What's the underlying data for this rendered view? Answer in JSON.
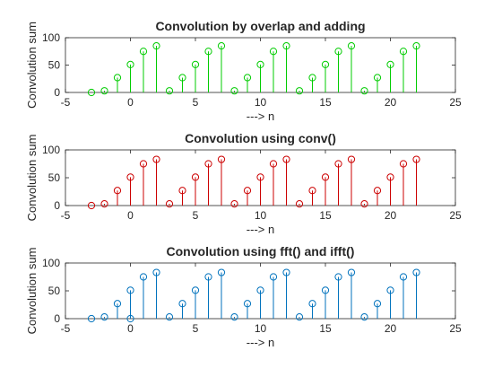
{
  "chart_data": [
    {
      "type": "stem",
      "title": "Convolution by overlap and adding",
      "xlabel": "---> n",
      "ylabel": "Convolution sum",
      "xlim": [
        -5,
        25
      ],
      "ylim": [
        0,
        100
      ],
      "xticks": [
        -5,
        0,
        5,
        10,
        15,
        20,
        25
      ],
      "yticks": [
        0,
        50,
        100
      ],
      "color": "#00cc00",
      "x": [
        -3,
        -2,
        -1,
        0,
        1,
        2,
        3,
        4,
        5,
        6,
        7,
        8,
        9,
        10,
        11,
        12,
        13,
        14,
        15,
        16,
        17,
        18,
        19,
        20,
        21,
        22
      ],
      "values": [
        0,
        3,
        27,
        51,
        75,
        85,
        3,
        27,
        51,
        75,
        85,
        3,
        27,
        51,
        75,
        85,
        3,
        27,
        51,
        75,
        85,
        3,
        27,
        51,
        75,
        85
      ]
    },
    {
      "type": "stem",
      "title": "Convolution using conv()",
      "xlabel": "---> n",
      "ylabel": "Convolution sum",
      "xlim": [
        -5,
        25
      ],
      "ylim": [
        0,
        100
      ],
      "xticks": [
        -5,
        0,
        5,
        10,
        15,
        20,
        25
      ],
      "yticks": [
        0,
        50,
        100
      ],
      "color": "#cc0000",
      "x": [
        -3,
        -2,
        -1,
        0,
        1,
        2,
        3,
        4,
        5,
        6,
        7,
        8,
        9,
        10,
        11,
        12,
        13,
        14,
        15,
        16,
        17,
        18,
        19,
        20,
        21,
        22
      ],
      "values": [
        0,
        3,
        27,
        51,
        75,
        83,
        3,
        27,
        51,
        75,
        83,
        3,
        27,
        51,
        75,
        83,
        3,
        27,
        51,
        75,
        83,
        3,
        27,
        51,
        75,
        83
      ]
    },
    {
      "type": "stem",
      "title": "Convolution using fft() and ifft()",
      "xlabel": "---> n",
      "ylabel": "Convolution sum",
      "xlim": [
        -5,
        25
      ],
      "ylim": [
        0,
        100
      ],
      "xticks": [
        -5,
        0,
        5,
        10,
        15,
        20,
        25
      ],
      "yticks": [
        0,
        50,
        100
      ],
      "color": "#0072bd",
      "x": [
        -3,
        -2,
        -1,
        0,
        0,
        1,
        2,
        3,
        4,
        5,
        6,
        7,
        8,
        9,
        10,
        11,
        12,
        13,
        14,
        15,
        16,
        17,
        18,
        19,
        20,
        21,
        22
      ],
      "values": [
        0,
        3,
        27,
        51,
        0,
        75,
        83,
        3,
        27,
        51,
        75,
        83,
        3,
        27,
        51,
        75,
        83,
        3,
        27,
        51,
        75,
        83,
        3,
        27,
        51,
        75,
        83
      ]
    }
  ]
}
